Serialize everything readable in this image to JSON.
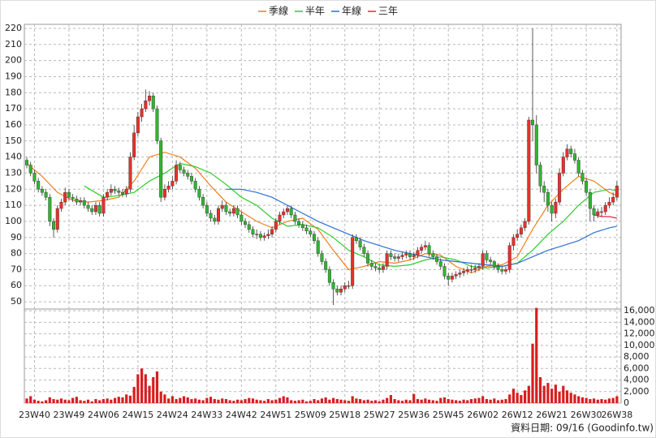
{
  "chart_data": {
    "type": "candlestick",
    "legend": [
      "季線",
      "半年",
      "年線",
      "三年"
    ],
    "source": "資料日期: 09/16  (Goodinfo.tw)",
    "up_color": "#e8302b",
    "down_color": "#2fb52f",
    "grid": true,
    "categories": [
      null,
      null,
      "23W40",
      null,
      null,
      null,
      null,
      null,
      null,
      null,
      null,
      "23W49",
      null,
      null,
      null,
      null,
      null,
      null,
      null,
      null,
      "24W06",
      null,
      null,
      null,
      null,
      null,
      null,
      null,
      null,
      "24W15",
      null,
      null,
      null,
      null,
      null,
      null,
      null,
      null,
      "24W24",
      null,
      null,
      null,
      null,
      null,
      null,
      null,
      null,
      "24W33",
      null,
      null,
      null,
      null,
      null,
      null,
      null,
      null,
      "24W42",
      null,
      null,
      null,
      null,
      null,
      null,
      null,
      null,
      "24W51",
      null,
      null,
      null,
      null,
      null,
      null,
      null,
      null,
      "25W09",
      null,
      null,
      null,
      null,
      null,
      null,
      null,
      null,
      "25W18",
      null,
      null,
      null,
      null,
      null,
      null,
      null,
      null,
      "25W27",
      null,
      null,
      null,
      null,
      null,
      null,
      null,
      null,
      "25W36",
      null,
      null,
      null,
      null,
      null,
      null,
      null,
      null,
      "25W45",
      null,
      null,
      null,
      null,
      null,
      null,
      null,
      null,
      "26W02",
      null,
      null,
      null,
      null,
      null,
      null,
      null,
      null,
      "26W12",
      null,
      null,
      null,
      null,
      null,
      null,
      null,
      null,
      "26W21",
      null,
      null,
      null,
      null,
      null,
      null,
      null,
      null,
      "26W30",
      null,
      null,
      null,
      null,
      null,
      null,
      null,
      "26W38"
    ],
    "open": [
      138,
      135,
      130,
      125,
      120,
      118,
      115,
      100,
      95,
      108,
      112,
      118,
      115,
      114,
      112,
      113,
      110,
      108,
      106,
      110,
      105,
      115,
      118,
      120,
      119,
      118,
      117,
      120,
      140,
      155,
      165,
      170,
      175,
      178,
      170,
      150,
      115,
      120,
      122,
      125,
      135,
      132,
      130,
      128,
      125,
      120,
      115,
      110,
      105,
      102,
      100,
      108,
      110,
      106,
      105,
      108,
      104,
      100,
      98,
      95,
      92,
      92,
      90,
      91,
      92,
      95,
      100,
      104,
      106,
      108,
      104,
      100,
      98,
      96,
      94,
      92,
      88,
      80,
      75,
      70,
      62,
      58,
      56,
      58,
      60,
      60,
      90,
      88,
      84,
      80,
      74,
      72,
      71,
      70,
      72,
      80,
      78,
      77,
      78,
      79,
      80,
      78,
      79,
      82,
      84,
      85,
      80,
      78,
      75,
      72,
      66,
      64,
      66,
      67,
      68,
      69,
      70,
      70,
      71,
      72,
      80,
      76,
      75,
      72,
      70,
      69,
      70,
      85,
      90,
      92,
      96,
      100,
      163,
      160,
      135,
      122,
      118,
      110,
      105,
      112,
      130,
      140,
      145,
      142,
      138,
      130,
      125,
      118,
      108,
      104,
      106,
      106,
      110,
      112,
      115
    ],
    "high": [
      140,
      137,
      132,
      127,
      122,
      120,
      117,
      102,
      110,
      114,
      121,
      120,
      117,
      116,
      115,
      115,
      112,
      110,
      112,
      112,
      117,
      120,
      123,
      122,
      121,
      120,
      122,
      143,
      160,
      168,
      173,
      182,
      181,
      180,
      172,
      152,
      123,
      125,
      128,
      138,
      137,
      134,
      132,
      130,
      127,
      122,
      117,
      112,
      107,
      104,
      110,
      113,
      112,
      108,
      110,
      110,
      106,
      102,
      100,
      97,
      95,
      94,
      93,
      95,
      97,
      102,
      106,
      108,
      110,
      110,
      106,
      102,
      100,
      98,
      96,
      94,
      90,
      82,
      77,
      72,
      64,
      60,
      60,
      62,
      63,
      92,
      92,
      90,
      86,
      82,
      76,
      74,
      73,
      74,
      82,
      82,
      80,
      80,
      81,
      82,
      82,
      81,
      84,
      86,
      88,
      87,
      82,
      80,
      77,
      74,
      68,
      68,
      69,
      70,
      71,
      72,
      73,
      73,
      74,
      82,
      82,
      78,
      76,
      74,
      72,
      72,
      87,
      92,
      95,
      98,
      102,
      165,
      220,
      166,
      137,
      125,
      120,
      112,
      114,
      133,
      143,
      148,
      147,
      145,
      140,
      132,
      127,
      120,
      110,
      108,
      109,
      112,
      115,
      118,
      125
    ],
    "low": [
      133,
      128,
      123,
      118,
      116,
      113,
      97,
      90,
      93,
      106,
      110,
      113,
      112,
      110,
      110,
      108,
      106,
      104,
      104,
      103,
      103,
      113,
      116,
      117,
      116,
      115,
      115,
      118,
      138,
      153,
      162,
      168,
      172,
      168,
      148,
      112,
      113,
      118,
      120,
      123,
      130,
      128,
      126,
      123,
      118,
      113,
      108,
      103,
      100,
      98,
      98,
      106,
      104,
      103,
      103,
      102,
      98,
      96,
      93,
      90,
      89,
      88,
      88,
      89,
      90,
      93,
      98,
      102,
      104,
      102,
      98,
      96,
      94,
      92,
      90,
      86,
      78,
      73,
      68,
      60,
      48,
      54,
      54,
      56,
      58,
      58,
      86,
      82,
      78,
      72,
      70,
      69,
      68,
      68,
      70,
      76,
      75,
      75,
      76,
      77,
      76,
      76,
      77,
      80,
      82,
      78,
      76,
      73,
      70,
      64,
      60,
      62,
      64,
      65,
      66,
      67,
      68,
      68,
      69,
      70,
      74,
      73,
      70,
      68,
      67,
      67,
      68,
      82,
      88,
      90,
      94,
      98,
      150,
      130,
      118,
      112,
      106,
      100,
      102,
      110,
      128,
      138,
      140,
      136,
      128,
      123,
      116,
      100,
      100,
      102,
      103,
      104,
      108,
      110,
      113
    ],
    "close": [
      135,
      130,
      125,
      120,
      118,
      115,
      100,
      95,
      108,
      112,
      118,
      115,
      114,
      112,
      113,
      110,
      108,
      106,
      110,
      105,
      115,
      118,
      120,
      119,
      118,
      117,
      120,
      140,
      155,
      165,
      170,
      175,
      178,
      170,
      150,
      115,
      120,
      122,
      125,
      135,
      132,
      130,
      128,
      125,
      120,
      115,
      110,
      105,
      102,
      100,
      108,
      110,
      106,
      105,
      108,
      104,
      100,
      98,
      95,
      92,
      92,
      90,
      91,
      92,
      95,
      100,
      104,
      106,
      108,
      104,
      100,
      98,
      96,
      94,
      92,
      88,
      80,
      75,
      70,
      62,
      58,
      56,
      58,
      60,
      60,
      90,
      88,
      84,
      80,
      74,
      72,
      71,
      70,
      72,
      80,
      78,
      77,
      78,
      79,
      80,
      78,
      79,
      82,
      84,
      85,
      80,
      78,
      75,
      72,
      66,
      64,
      66,
      67,
      68,
      69,
      70,
      70,
      71,
      72,
      80,
      76,
      75,
      72,
      70,
      69,
      70,
      85,
      90,
      92,
      96,
      100,
      163,
      160,
      135,
      122,
      118,
      110,
      105,
      112,
      130,
      140,
      145,
      142,
      138,
      130,
      125,
      118,
      108,
      104,
      106,
      106,
      110,
      112,
      115,
      122
    ],
    "moving_averages": [
      {
        "name": "季線",
        "color": "#f07f1e",
        "x": [
          0,
          4,
          8,
          12,
          16,
          20,
          24,
          28,
          32,
          36,
          40,
          44,
          48,
          52,
          56,
          60,
          64,
          68,
          72,
          76,
          80,
          84,
          88,
          92,
          96,
          100,
          104,
          108,
          112,
          116,
          120,
          124,
          128,
          132,
          136,
          140,
          144,
          148,
          152,
          154
        ],
        "values": [
          136,
          128,
          118,
          113,
          112,
          113,
          115,
          125,
          140,
          143,
          140,
          133,
          122,
          112,
          106,
          100,
          96,
          100,
          102,
          95,
          82,
          70,
          72,
          75,
          74,
          76,
          80,
          79,
          72,
          68,
          72,
          73,
          78,
          95,
          110,
          120,
          128,
          125,
          118,
          116
        ]
      },
      {
        "name": "半年",
        "color": "#2ccc2c",
        "x": [
          15,
          20,
          24,
          28,
          32,
          36,
          40,
          44,
          48,
          52,
          56,
          60,
          64,
          68,
          72,
          76,
          80,
          84,
          88,
          92,
          96,
          100,
          104,
          108,
          112,
          116,
          120,
          124,
          128,
          132,
          136,
          140,
          144,
          148,
          152,
          154
        ],
        "values": [
          122,
          115,
          116,
          118,
          125,
          130,
          136,
          134,
          130,
          123,
          115,
          110,
          102,
          97,
          98,
          96,
          90,
          82,
          78,
          73,
          72,
          73,
          76,
          78,
          76,
          72,
          71,
          72,
          74,
          82,
          92,
          100,
          110,
          118,
          120,
          119
        ]
      },
      {
        "name": "年線",
        "color": "#2c6fd6",
        "x": [
          52,
          56,
          60,
          64,
          68,
          72,
          76,
          80,
          84,
          88,
          92,
          96,
          100,
          104,
          108,
          112,
          116,
          120,
          124,
          128,
          132,
          136,
          140,
          144,
          148,
          152,
          154
        ],
        "values": [
          120,
          120,
          118,
          115,
          110,
          105,
          100,
          96,
          92,
          88,
          85,
          82,
          80,
          78,
          76,
          75,
          74,
          73,
          72,
          74,
          78,
          82,
          85,
          88,
          93,
          96,
          97
        ]
      },
      {
        "name": "三年",
        "color": "#e0283c",
        "x": [
          148,
          150,
          152,
          154
        ],
        "values": [
          104,
          103,
          103,
          102
        ]
      }
    ],
    "volume": {
      "color": "#d81e1e",
      "values": [
        800,
        1200,
        600,
        400,
        300,
        500,
        1000,
        700,
        600,
        800,
        600,
        500,
        900,
        1100,
        500,
        400,
        600,
        300,
        700,
        500,
        700,
        800,
        600,
        900,
        1100,
        1000,
        1500,
        1300,
        2800,
        5000,
        6000,
        5000,
        3000,
        4500,
        5500,
        2000,
        1500,
        800,
        1200,
        700,
        900,
        1200,
        1000,
        700,
        800,
        600,
        500,
        900,
        1100,
        700,
        600,
        800,
        700,
        500,
        400,
        600,
        500,
        700,
        900,
        800,
        600,
        500,
        400,
        700,
        500,
        600,
        900,
        1200,
        1000,
        500,
        400,
        500,
        600,
        300,
        400,
        700,
        500,
        800,
        1000,
        600,
        900,
        700,
        600,
        500,
        400,
        1200,
        800,
        700,
        500,
        600,
        400,
        500,
        300,
        600,
        900,
        1400,
        700,
        500,
        400,
        600,
        500,
        1600,
        700,
        600,
        800,
        600,
        500,
        400,
        900,
        1000,
        700,
        600,
        500,
        400,
        600,
        500,
        700,
        800,
        900,
        1200,
        700,
        600,
        800,
        500,
        600,
        700,
        1500,
        2500,
        1800,
        1400,
        2200,
        3000,
        10300,
        16500,
        4500,
        3000,
        3500,
        2500,
        3200,
        2000,
        3000,
        2200,
        1800,
        1500,
        1200,
        1000,
        900,
        700,
        800,
        600,
        700,
        600,
        800,
        900,
        1200
      ]
    },
    "ylim": [
      45.5,
      222.5
    ],
    "yticks": [
      50,
      60,
      70,
      80,
      90,
      100,
      110,
      120,
      130,
      140,
      150,
      160,
      170,
      180,
      190,
      200,
      210,
      220
    ],
    "y2lim": [
      0,
      16300
    ],
    "y2ticks": [
      0,
      {
        "value": 2000,
        "label": "2,000"
      },
      {
        "value": 4000,
        "label": "4,000"
      },
      {
        "value": 6000,
        "label": "6,000"
      },
      {
        "value": 8000,
        "label": "8,000"
      },
      {
        "value": 10000,
        "label": "10,000"
      },
      {
        "value": 12000,
        "label": "12,000"
      },
      {
        "value": 14000,
        "label": "14,000"
      },
      {
        "value": 16000,
        "label": "16,000"
      }
    ]
  }
}
